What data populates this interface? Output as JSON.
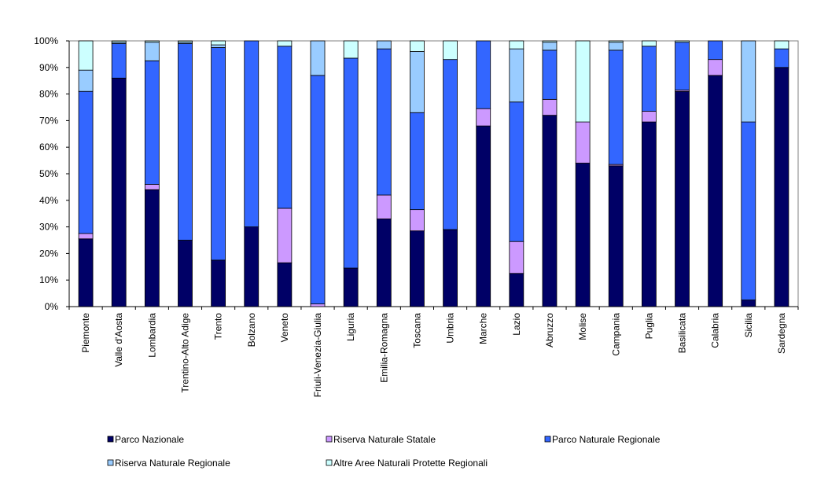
{
  "chart_data": {
    "type": "bar",
    "stacked": true,
    "normalized": true,
    "title": "",
    "xlabel": "",
    "ylabel": "",
    "ylim": [
      0,
      100
    ],
    "y_ticks": [
      "0%",
      "10%",
      "20%",
      "30%",
      "40%",
      "50%",
      "60%",
      "70%",
      "80%",
      "90%",
      "100%"
    ],
    "grid": false,
    "legend_position": "bottom",
    "categories": [
      "Piemonte",
      "Valle d'Aosta",
      "Lombardia",
      "Trentino-Alto Adige",
      "Trento",
      "Bolzano",
      "Veneto",
      "Friuli-Venezia-Giulia",
      "Liguria",
      "Emilia-Romagna",
      "Toscana",
      "Umbria",
      "Marche",
      "Lazio",
      "Abruzzo",
      "Molise",
      "Campania",
      "Puglia",
      "Basilicata",
      "Calabria",
      "Sicilia",
      "Sardegna"
    ],
    "series": [
      {
        "name": "Parco Nazionale",
        "color": "#000066",
        "values": [
          25.5,
          86,
          44,
          25,
          17.5,
          30,
          16.5,
          0,
          14.5,
          33,
          28.5,
          29,
          68,
          12.5,
          72,
          54,
          53,
          69.5,
          81,
          87,
          2.5,
          90
        ]
      },
      {
        "name": "Riserva Naturale  Statale",
        "color": "#cc99ff",
        "values": [
          2,
          0,
          2,
          0,
          0,
          0,
          20.5,
          1,
          0,
          9,
          8,
          0,
          6.5,
          12,
          6,
          15.5,
          0.5,
          4,
          0.5,
          6,
          0,
          0
        ]
      },
      {
        "name": "Parco Naturale  Regionale",
        "color": "#3366ff",
        "values": [
          53.5,
          13,
          46.5,
          74,
          80,
          70,
          61,
          86,
          79,
          55,
          36.5,
          64,
          25.5,
          52.5,
          18.5,
          0,
          43,
          24.5,
          18,
          7,
          67,
          7
        ]
      },
      {
        "name": "Riserva Naturale  Regionale",
        "color": "#99ccff",
        "values": [
          8,
          0.5,
          7,
          0.5,
          1,
          0,
          0,
          13,
          0,
          3,
          23,
          0,
          0,
          20,
          3,
          0,
          3,
          0,
          0,
          0,
          30.5,
          0
        ]
      },
      {
        "name": "Altre Aree  Naturali  Protette Regionali",
        "color": "#ccffff",
        "values": [
          11,
          0.5,
          0.5,
          0.5,
          1.5,
          0,
          2,
          0,
          6.5,
          0,
          4,
          7,
          0,
          3,
          0.5,
          30.5,
          0.5,
          2,
          0.5,
          0,
          0,
          3
        ]
      }
    ]
  }
}
